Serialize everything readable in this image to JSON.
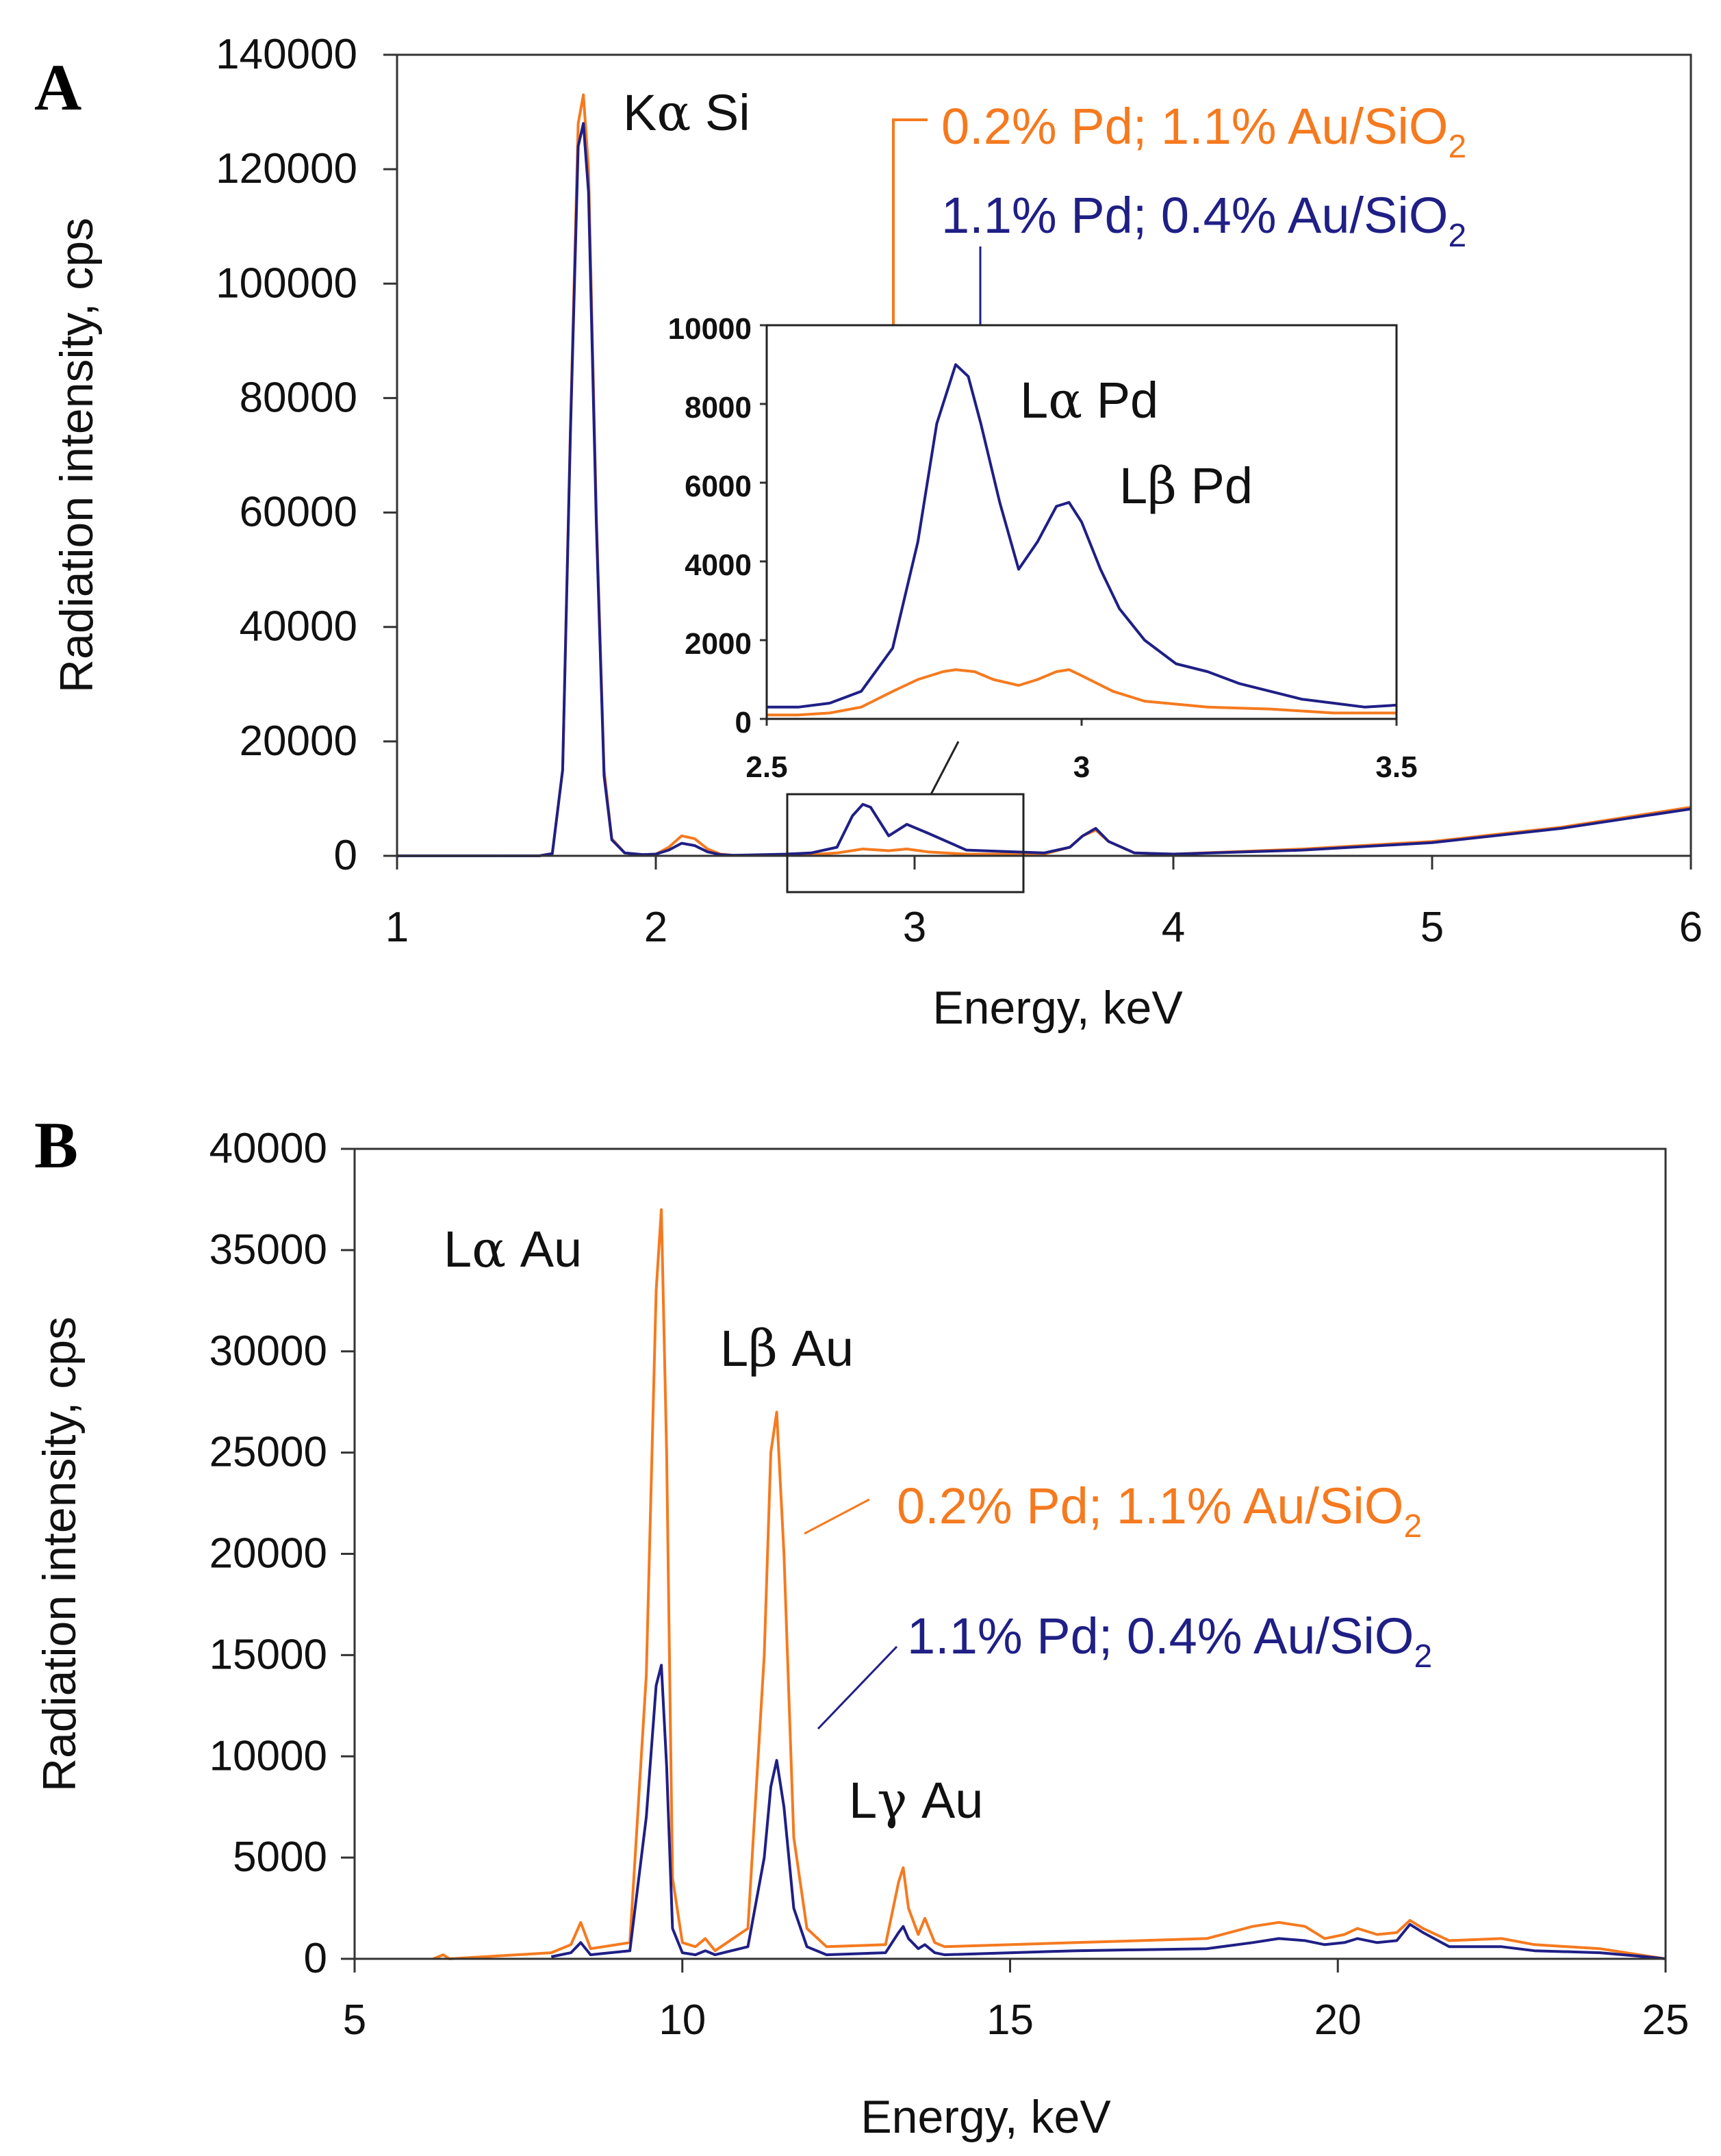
{
  "colors": {
    "orange": "#f57a1f",
    "navy": "#1f1f86",
    "axis": "#333333"
  },
  "chart_data": [
    {
      "panel": "A",
      "type": "line",
      "xlabel": "Energy, keV",
      "ylabel": "Radiation intensity, cps",
      "xlim": [
        1,
        6
      ],
      "ylim": [
        0,
        140000
      ],
      "xticks": [
        "1",
        "2",
        "3",
        "4",
        "5",
        "6"
      ],
      "yticks": [
        "0",
        "20000",
        "40000",
        "60000",
        "80000",
        "100000",
        "120000",
        "140000"
      ],
      "peaks": [
        {
          "label": "Kα Si",
          "greek": "α",
          "prefix": "K",
          "element": "Si"
        }
      ],
      "series": [
        {
          "name": "0.2% Pd; 1.1% Au/SiO2",
          "color": "#f57a1f",
          "x": [
            1.4,
            1.55,
            1.6,
            1.64,
            1.67,
            1.7,
            1.72,
            1.74,
            1.77,
            1.8,
            1.83,
            1.88,
            1.95,
            2.0,
            2.05,
            2.1,
            2.15,
            2.2,
            2.25,
            2.3,
            2.5,
            2.6,
            2.7,
            2.8,
            2.9,
            2.97,
            3.05,
            3.2,
            3.5,
            3.6,
            3.65,
            3.7,
            3.75,
            3.85,
            4.0,
            4.5,
            5.0,
            5.5,
            6.0
          ],
          "y": [
            0,
            0,
            400,
            15000,
            75000,
            128000,
            133000,
            120000,
            60000,
            15000,
            3000,
            500,
            200,
            300,
            1500,
            3500,
            3000,
            1200,
            300,
            100,
            100,
            200,
            500,
            1200,
            900,
            1200,
            700,
            300,
            300,
            1500,
            3500,
            4500,
            2500,
            500,
            300,
            1200,
            2500,
            5000,
            8500
          ]
        },
        {
          "name": "1.1% Pd; 0.4% Au/SiO2",
          "color": "#1f1f86",
          "x": [
            1.4,
            1.55,
            1.6,
            1.64,
            1.67,
            1.7,
            1.72,
            1.74,
            1.77,
            1.8,
            1.83,
            1.88,
            1.95,
            2.0,
            2.05,
            2.1,
            2.15,
            2.2,
            2.25,
            2.3,
            2.5,
            2.6,
            2.7,
            2.76,
            2.8,
            2.83,
            2.9,
            2.97,
            3.05,
            3.2,
            3.5,
            3.6,
            3.65,
            3.7,
            3.75,
            3.85,
            4.0,
            4.5,
            5.0,
            5.5,
            6.0
          ],
          "y": [
            0,
            0,
            400,
            15000,
            74000,
            124000,
            128000,
            116000,
            58000,
            14000,
            2800,
            500,
            200,
            300,
            1000,
            2200,
            1800,
            700,
            200,
            100,
            300,
            500,
            1500,
            7000,
            9000,
            8500,
            3500,
            5500,
            4000,
            1000,
            500,
            1500,
            3500,
            4800,
            2500,
            500,
            300,
            1000,
            2300,
            4800,
            8200
          ]
        }
      ],
      "annotations": [
        {
          "text": "0.2% Pd; 1.1% Au/SiO",
          "subscript": "2",
          "color": "orange"
        },
        {
          "text": "1.1% Pd; 0.4% Au/SiO",
          "subscript": "2",
          "color": "navy"
        }
      ],
      "inset": {
        "xlim": [
          2.5,
          3.5
        ],
        "ylim": [
          0,
          10000
        ],
        "xticks": [
          "2.5",
          "3",
          "3.5"
        ],
        "yticks": [
          "0",
          "2000",
          "4000",
          "6000",
          "8000",
          "10000"
        ],
        "peaks": [
          {
            "prefix": "L",
            "greek": "α",
            "element": "Pd"
          },
          {
            "prefix": "L",
            "greek": "β",
            "element": "Pd"
          }
        ],
        "series": [
          {
            "name": "0.2% Pd; 1.1% Au/SiO2",
            "color": "#f57a1f",
            "x": [
              2.5,
              2.55,
              2.6,
              2.65,
              2.7,
              2.74,
              2.78,
              2.8,
              2.83,
              2.86,
              2.9,
              2.93,
              2.96,
              2.98,
              3.0,
              3.05,
              3.1,
              3.2,
              3.3,
              3.4,
              3.5
            ],
            "y": [
              100,
              100,
              150,
              300,
              700,
              1000,
              1200,
              1250,
              1200,
              1000,
              850,
              1000,
              1200,
              1250,
              1100,
              700,
              450,
              300,
              250,
              150,
              150
            ]
          },
          {
            "name": "1.1% Pd; 0.4% Au/SiO2",
            "color": "#1f1f86",
            "x": [
              2.5,
              2.55,
              2.6,
              2.65,
              2.7,
              2.74,
              2.77,
              2.8,
              2.82,
              2.84,
              2.87,
              2.9,
              2.93,
              2.96,
              2.98,
              3.0,
              3.03,
              3.06,
              3.1,
              3.15,
              3.2,
              3.25,
              3.3,
              3.35,
              3.4,
              3.45,
              3.5
            ],
            "y": [
              300,
              300,
              400,
              700,
              1800,
              4500,
              7500,
              9000,
              8700,
              7500,
              5500,
              3800,
              4500,
              5400,
              5500,
              5000,
              3800,
              2800,
              2000,
              1400,
              1200,
              900,
              700,
              500,
              400,
              300,
              350
            ]
          }
        ]
      }
    },
    {
      "panel": "B",
      "type": "line",
      "xlabel": "Energy, keV",
      "ylabel": "Radiation intensity, cps",
      "xlim": [
        5,
        25
      ],
      "ylim": [
        0,
        40000
      ],
      "xticks": [
        "5",
        "10",
        "15",
        "20",
        "25"
      ],
      "yticks": [
        "0",
        "5000",
        "10000",
        "15000",
        "20000",
        "25000",
        "30000",
        "35000",
        "40000"
      ],
      "peaks": [
        {
          "prefix": "L",
          "greek": "α",
          "element": "Au"
        },
        {
          "prefix": "L",
          "greek": "β",
          "element": "Au"
        },
        {
          "prefix": "L",
          "greek": "γ",
          "element": "Au"
        }
      ],
      "series": [
        {
          "name": "0.2% Pd; 1.1% Au/SiO2",
          "color": "#f57a1f",
          "x": [
            6.2,
            6.35,
            6.45,
            8.0,
            8.3,
            8.45,
            8.6,
            9.2,
            9.45,
            9.6,
            9.68,
            9.76,
            9.85,
            10.0,
            10.2,
            10.35,
            10.5,
            11.0,
            11.25,
            11.35,
            11.44,
            11.55,
            11.7,
            11.9,
            12.2,
            13.1,
            13.3,
            13.37,
            13.45,
            13.6,
            13.7,
            13.85,
            14.0,
            16.0,
            18.0,
            18.7,
            19.1,
            19.5,
            19.8,
            20.1,
            20.3,
            20.6,
            20.9,
            21.1,
            21.3,
            21.7,
            22.5,
            23.0,
            24.0,
            24.7,
            25.0
          ],
          "y": [
            0,
            200,
            0,
            300,
            700,
            1800,
            500,
            800,
            14000,
            33000,
            37000,
            25000,
            4000,
            800,
            600,
            1000,
            400,
            1500,
            15000,
            25000,
            27000,
            20000,
            6000,
            1500,
            600,
            700,
            3800,
            4500,
            2500,
            1200,
            2000,
            800,
            600,
            800,
            1000,
            1600,
            1800,
            1600,
            1000,
            1200,
            1500,
            1200,
            1300,
            1900,
            1500,
            900,
            1000,
            700,
            500,
            150,
            0
          ]
        },
        {
          "name": "1.1% Pd; 0.4% Au/SiO2",
          "color": "#1f1f86",
          "x": [
            8.0,
            8.3,
            8.45,
            8.6,
            9.2,
            9.45,
            9.6,
            9.68,
            9.76,
            9.85,
            10.0,
            10.2,
            10.35,
            10.5,
            11.0,
            11.25,
            11.35,
            11.44,
            11.55,
            11.7,
            11.9,
            12.2,
            13.1,
            13.3,
            13.37,
            13.45,
            13.6,
            13.7,
            13.85,
            14.0,
            16.0,
            18.0,
            18.7,
            19.1,
            19.5,
            19.8,
            20.1,
            20.3,
            20.6,
            20.9,
            21.1,
            21.3,
            21.7,
            22.5,
            23.0,
            24.0,
            24.7,
            25.0
          ],
          "y": [
            100,
            300,
            800,
            200,
            400,
            7000,
            13500,
            14500,
            9500,
            1500,
            300,
            200,
            400,
            200,
            600,
            5000,
            8500,
            9800,
            7500,
            2500,
            600,
            200,
            300,
            1300,
            1600,
            1000,
            500,
            700,
            300,
            200,
            400,
            500,
            800,
            1000,
            900,
            700,
            800,
            1000,
            800,
            900,
            1700,
            1300,
            600,
            600,
            400,
            300,
            100,
            0
          ]
        }
      ],
      "annotations": [
        {
          "text": "0.2% Pd; 1.1% Au/SiO",
          "subscript": "2",
          "color": "orange"
        },
        {
          "text": "1.1% Pd; 0.4% Au/SiO",
          "subscript": "2",
          "color": "navy"
        }
      ]
    }
  ]
}
